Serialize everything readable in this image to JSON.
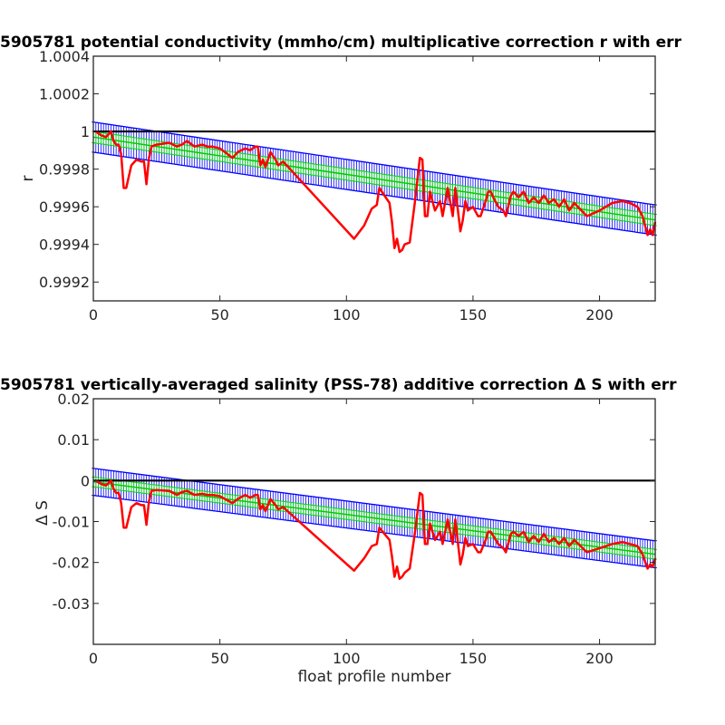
{
  "chart_data": [
    {
      "type": "line",
      "title": "5905781 potential conductivity (mmho/cm) multiplicative correction r with err",
      "xlabel": "",
      "ylabel": "r",
      "xlim": [
        0,
        222
      ],
      "ylim": [
        0.9991,
        1.0004
      ],
      "xticks": [
        0,
        50,
        100,
        150,
        200
      ],
      "xtick_labels": [
        "0",
        "50",
        "100",
        "150",
        "200"
      ],
      "yticks": [
        0.9992,
        0.9994,
        0.9996,
        0.9998,
        1.0,
        1.0002,
        1.0004
      ],
      "ytick_labels": [
        "0.9992",
        "0.9994",
        "0.9996",
        "0.9998",
        "1",
        "1.0002",
        "1.0004"
      ],
      "grid": false,
      "reference_line": 1.0,
      "fit_center": [
        [
          0,
          0.99997
        ],
        [
          222,
          0.99953
        ]
      ],
      "error_halfwidth": 8e-05,
      "inner_halfwidth": 3e-05,
      "series": [
        {
          "color": "#ff0000",
          "x": [
            1,
            3,
            5,
            7,
            8,
            9,
            10,
            11,
            12,
            13,
            15,
            17,
            19,
            20,
            21,
            22,
            23,
            25,
            30,
            33,
            35,
            37,
            40,
            43,
            45,
            47,
            50,
            52,
            55,
            57,
            60,
            62,
            64,
            65,
            66,
            67,
            68,
            70,
            72,
            73,
            75,
            103,
            107,
            110,
            112,
            113,
            117,
            118,
            119,
            120,
            121,
            122,
            123,
            125,
            127,
            128,
            129,
            130,
            131,
            132,
            133,
            135,
            137,
            138,
            140,
            142,
            143,
            145,
            146,
            147,
            148,
            150,
            152,
            153,
            155,
            156,
            157,
            158,
            160,
            162,
            163,
            165,
            166,
            168,
            170,
            172,
            174,
            176,
            178,
            180,
            182,
            184,
            186,
            188,
            190,
            195,
            200,
            205,
            209,
            212,
            215,
            217,
            219,
            220,
            221,
            222
          ],
          "y": [
            1.0,
            0.99998,
            0.99997,
            1.0,
            0.99995,
            0.99993,
            0.99993,
            0.99988,
            0.9997,
            0.9997,
            0.99982,
            0.99985,
            0.99984,
            0.99984,
            0.99972,
            0.99986,
            0.99992,
            0.99993,
            0.99994,
            0.99992,
            0.99993,
            0.99995,
            0.99992,
            0.99993,
            0.99992,
            0.99992,
            0.99991,
            0.99989,
            0.99986,
            0.99989,
            0.99991,
            0.9999,
            0.99992,
            0.99992,
            0.99982,
            0.99985,
            0.99981,
            0.99989,
            0.99985,
            0.99982,
            0.99984,
            0.99943,
            0.9995,
            0.99959,
            0.99961,
            0.9997,
            0.99962,
            0.99952,
            0.99938,
            0.99943,
            0.99936,
            0.99937,
            0.9994,
            0.99941,
            0.99962,
            0.99974,
            0.99986,
            0.99985,
            0.99955,
            0.99955,
            0.99968,
            0.99958,
            0.99963,
            0.99955,
            0.9997,
            0.99955,
            0.9997,
            0.99947,
            0.99953,
            0.99963,
            0.99958,
            0.9996,
            0.99955,
            0.99955,
            0.99963,
            0.99968,
            0.99968,
            0.99965,
            0.9996,
            0.99958,
            0.99955,
            0.99966,
            0.99968,
            0.99965,
            0.99968,
            0.99962,
            0.99965,
            0.99962,
            0.99966,
            0.99962,
            0.99964,
            0.9996,
            0.99964,
            0.99958,
            0.99962,
            0.99955,
            0.99958,
            0.99962,
            0.99963,
            0.99962,
            0.9996,
            0.99955,
            0.99945,
            0.99948,
            0.99945,
            0.99952
          ]
        }
      ]
    },
    {
      "type": "line",
      "title": "5905781 vertically-averaged salinity (PSS-78) additive correction Δ S with err",
      "xlabel": "float profile number",
      "ylabel": "Δ S",
      "xlim": [
        0,
        222
      ],
      "ylim": [
        -0.04,
        0.02
      ],
      "xticks": [
        0,
        50,
        100,
        150,
        200
      ],
      "xtick_labels": [
        "0",
        "50",
        "100",
        "150",
        "200"
      ],
      "yticks": [
        -0.03,
        -0.02,
        -0.01,
        0,
        0.01,
        0.02
      ],
      "ytick_labels": [
        "-0.03",
        "-0.02",
        "-0.01",
        "0",
        "0.01",
        "0.02"
      ],
      "grid": false,
      "reference_line": 0,
      "fit_center": [
        [
          0,
          -0.0003
        ],
        [
          222,
          -0.018
        ]
      ],
      "error_halfwidth": 0.0033,
      "inner_halfwidth": 0.0012,
      "series": [
        {
          "color": "#ff0000",
          "x": [
            1,
            3,
            5,
            7,
            8,
            9,
            10,
            11,
            12,
            13,
            15,
            17,
            19,
            20,
            21,
            22,
            23,
            25,
            30,
            33,
            35,
            37,
            40,
            43,
            45,
            47,
            50,
            52,
            55,
            57,
            60,
            62,
            64,
            65,
            66,
            67,
            68,
            70,
            72,
            73,
            75,
            103,
            107,
            110,
            112,
            113,
            117,
            118,
            119,
            120,
            121,
            122,
            123,
            125,
            127,
            128,
            129,
            130,
            131,
            132,
            133,
            135,
            137,
            138,
            140,
            142,
            143,
            145,
            146,
            147,
            148,
            150,
            152,
            153,
            155,
            156,
            157,
            158,
            160,
            162,
            163,
            165,
            166,
            168,
            170,
            172,
            174,
            176,
            178,
            180,
            182,
            184,
            186,
            188,
            190,
            195,
            200,
            205,
            209,
            212,
            215,
            217,
            219,
            220,
            221,
            222
          ],
          "y": [
            0.0,
            -0.0008,
            -0.0012,
            0.0,
            -0.002,
            -0.003,
            -0.003,
            -0.0055,
            -0.0115,
            -0.0115,
            -0.0065,
            -0.0055,
            -0.006,
            -0.006,
            -0.0108,
            -0.005,
            -0.0025,
            -0.0023,
            -0.0025,
            -0.0035,
            -0.0028,
            -0.0025,
            -0.0035,
            -0.0032,
            -0.0035,
            -0.0035,
            -0.0038,
            -0.0045,
            -0.0055,
            -0.0045,
            -0.0035,
            -0.0042,
            -0.0035,
            -0.0035,
            -0.007,
            -0.006,
            -0.0075,
            -0.0045,
            -0.006,
            -0.007,
            -0.0065,
            -0.022,
            -0.019,
            -0.016,
            -0.0155,
            -0.0115,
            -0.0145,
            -0.0185,
            -0.0235,
            -0.021,
            -0.024,
            -0.0235,
            -0.0225,
            -0.0215,
            -0.013,
            -0.008,
            -0.003,
            -0.0035,
            -0.0155,
            -0.0155,
            -0.0105,
            -0.0145,
            -0.0125,
            -0.0155,
            -0.0095,
            -0.0155,
            -0.0095,
            -0.0205,
            -0.018,
            -0.014,
            -0.016,
            -0.0155,
            -0.0175,
            -0.0175,
            -0.0145,
            -0.0125,
            -0.0125,
            -0.0135,
            -0.0155,
            -0.0165,
            -0.0175,
            -0.013,
            -0.0125,
            -0.0135,
            -0.0125,
            -0.015,
            -0.0135,
            -0.015,
            -0.013,
            -0.015,
            -0.014,
            -0.0155,
            -0.014,
            -0.016,
            -0.0145,
            -0.0175,
            -0.0165,
            -0.0155,
            -0.015,
            -0.0155,
            -0.016,
            -0.018,
            -0.0215,
            -0.0205,
            -0.021,
            -0.019
          ]
        }
      ]
    }
  ]
}
